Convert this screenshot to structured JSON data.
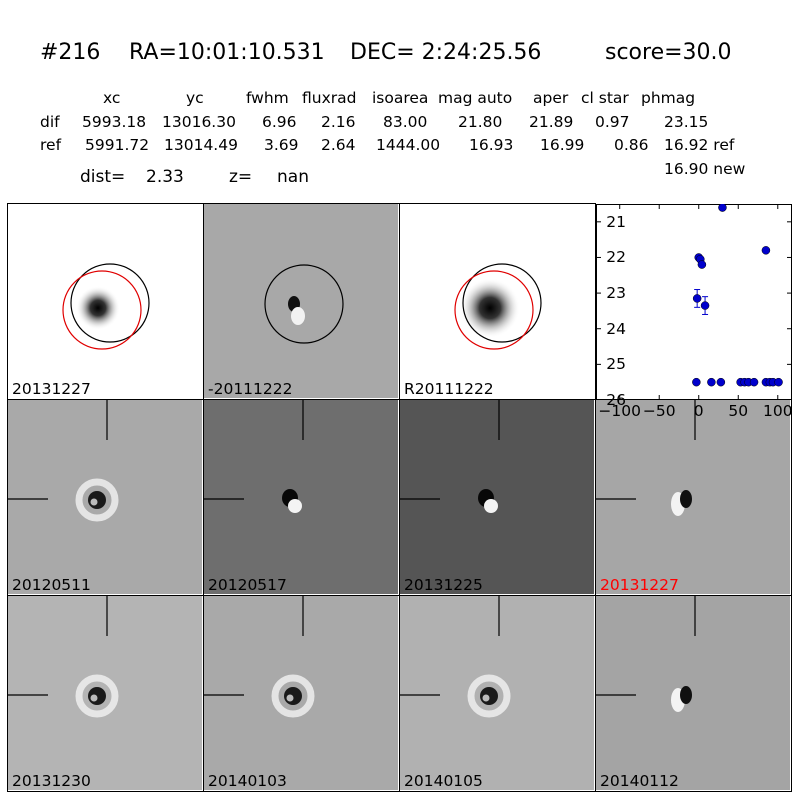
{
  "header": {
    "id": "#216",
    "ra": "RA=10:01:10.531",
    "dec": "DEC= 2:24:25.56",
    "score": "score=30.0"
  },
  "table": {
    "columns": [
      "xc",
      "yc",
      "fwhm",
      "fluxrad",
      "isoarea",
      "mag auto",
      "aper",
      "cl star",
      "phmag"
    ],
    "rows": [
      {
        "label": "dif",
        "values": [
          "5993.18",
          "13016.30",
          "6.96",
          "2.16",
          "83.00",
          "21.80",
          "21.89",
          "0.97",
          "23.15"
        ]
      },
      {
        "label": "ref",
        "values": [
          "5991.72",
          "13014.49",
          "3.69",
          "2.64",
          "1444.00",
          "16.93",
          "16.99",
          "0.86",
          "16.92 ref"
        ]
      }
    ],
    "phmag_new": "16.90 new"
  },
  "dist_line": {
    "dist_label": "dist=",
    "dist_value": "2.33",
    "z_label": "z=",
    "z_value": "nan"
  },
  "panels": [
    {
      "label": "20131227",
      "bg": "#ffffff",
      "kind": "psf-circles",
      "label_color": "#000000"
    },
    {
      "label": "-20111222",
      "bg": "#a8a8a8",
      "kind": "dipole-circle",
      "label_color": "#000000"
    },
    {
      "label": "R20111222",
      "bg": "#ffffff",
      "kind": "psf-circles-dark",
      "label_color": "#000000"
    },
    {
      "label": "20120511",
      "bg": "#a9a9a9",
      "kind": "ring",
      "label_color": "#000000"
    },
    {
      "label": "20120517",
      "bg": "#6e6e6e",
      "kind": "dipole",
      "label_color": "#000000"
    },
    {
      "label": "20131225",
      "bg": "#555555",
      "kind": "dipole-dark",
      "label_color": "#000000"
    },
    {
      "label": "20131227",
      "bg": "#a6a6a6",
      "kind": "dipole-light",
      "label_color": "#ff0000"
    },
    {
      "label": "20131230",
      "bg": "#b4b4b4",
      "kind": "ring",
      "label_color": "#000000"
    },
    {
      "label": "20140103",
      "bg": "#a9a9a9",
      "kind": "ring",
      "label_color": "#000000"
    },
    {
      "label": "20140105",
      "bg": "#b1b1b1",
      "kind": "ring",
      "label_color": "#000000"
    },
    {
      "label": "20140112",
      "bg": "#a4a4a4",
      "kind": "dipole-light",
      "label_color": "#000000"
    }
  ],
  "chart_data": {
    "type": "scatter",
    "title": "",
    "xlabel": "",
    "ylabel": "",
    "xlim": [
      -130,
      118
    ],
    "ylim": [
      26,
      20.5
    ],
    "y_inverted": true,
    "x_ticks": [
      "−100",
      "−50",
      "0",
      "50",
      "100"
    ],
    "x_tick_values": [
      -100,
      -50,
      0,
      50,
      100
    ],
    "y_ticks": [
      "21",
      "22",
      "23",
      "24",
      "25",
      "26"
    ],
    "y_tick_values": [
      21,
      22,
      23,
      24,
      25,
      26
    ],
    "marker_color": "#0000cc",
    "points": [
      {
        "x": 30,
        "y": 20.6
      },
      {
        "x": 0,
        "y": 22.0
      },
      {
        "x": 2,
        "y": 22.05
      },
      {
        "x": 4,
        "y": 22.2
      },
      {
        "x": -2,
        "y": 23.15,
        "err": 0.25
      },
      {
        "x": 8,
        "y": 23.35,
        "err": 0.25
      },
      {
        "x": 85,
        "y": 21.8
      },
      {
        "x": -3,
        "y": 25.5
      },
      {
        "x": 16,
        "y": 25.5
      },
      {
        "x": 28,
        "y": 25.5
      },
      {
        "x": 53,
        "y": 25.5
      },
      {
        "x": 58,
        "y": 25.5
      },
      {
        "x": 63,
        "y": 25.5
      },
      {
        "x": 70,
        "y": 25.5
      },
      {
        "x": 85,
        "y": 25.5
      },
      {
        "x": 90,
        "y": 25.5
      },
      {
        "x": 94,
        "y": 25.5
      },
      {
        "x": 101,
        "y": 25.5
      }
    ]
  }
}
